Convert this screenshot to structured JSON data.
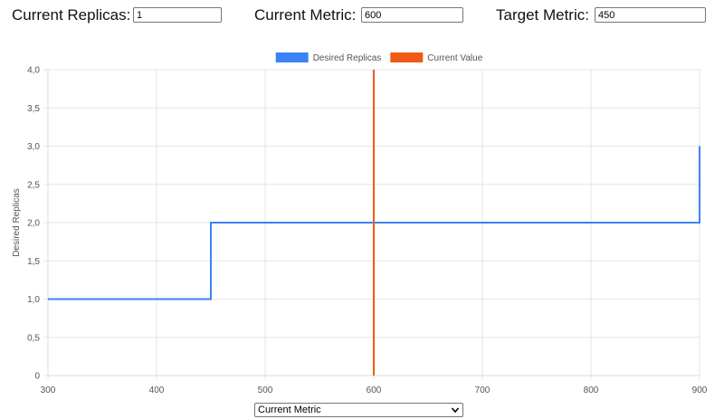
{
  "controls": {
    "current_replicas": {
      "label": "Current Replicas:",
      "value": "1"
    },
    "current_metric": {
      "label": "Current Metric:",
      "value": "600"
    },
    "target_metric": {
      "label": "Target Metric:",
      "value": "450"
    }
  },
  "x_axis_select": {
    "selected": "Current Metric"
  },
  "chart_data": {
    "type": "line",
    "title": "",
    "xlabel": "",
    "ylabel": "Desired Replicas",
    "xlim": [
      300,
      900
    ],
    "ylim": [
      0,
      4
    ],
    "x_ticks": [
      "300",
      "400",
      "500",
      "600",
      "700",
      "800",
      "900"
    ],
    "y_ticks": [
      "0",
      "0,5",
      "1,0",
      "1,5",
      "2,0",
      "2,5",
      "3,0",
      "3,5",
      "4,0"
    ],
    "grid": true,
    "legend_position": "top-center",
    "series": [
      {
        "name": "Desired Replicas",
        "color": "#3b82f6",
        "step": true,
        "points": [
          [
            300,
            1
          ],
          [
            450,
            1
          ],
          [
            450,
            2
          ],
          [
            900,
            2
          ],
          [
            900,
            3
          ]
        ]
      },
      {
        "name": "Current Value",
        "color": "#f05a14",
        "points": [
          [
            600,
            0
          ],
          [
            600,
            4
          ]
        ]
      }
    ]
  }
}
